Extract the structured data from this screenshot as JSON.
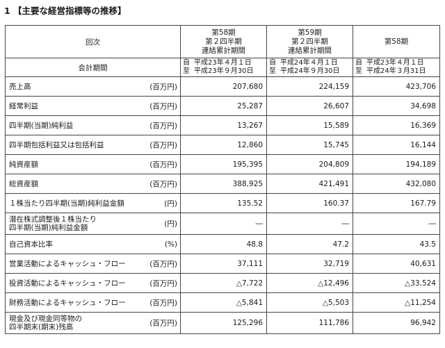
{
  "heading": "1 【主要な経営指標等の推移】",
  "header": {
    "row_label": "回次",
    "period_label": "会計期間",
    "columns": [
      {
        "title_lines": [
          "第58期",
          "第２四半期",
          "連結累計期間"
        ],
        "period_from_mark": "自",
        "period_from": "平成23年４月１日",
        "period_to_mark": "至",
        "period_to": "平成23年９月30日"
      },
      {
        "title_lines": [
          "第59期",
          "第２四半期",
          "連結累計期間"
        ],
        "period_from_mark": "自",
        "period_from": "平成24年４月１日",
        "period_to_mark": "至",
        "period_to": "平成24年９月30日"
      },
      {
        "title_lines": [
          "第58期"
        ],
        "period_from_mark": "自",
        "period_from": "平成23年４月１日",
        "period_to_mark": "至",
        "period_to": "平成24年３月31日"
      }
    ]
  },
  "rows": [
    {
      "label": "売上高",
      "unit": "(百万円)",
      "values": [
        "207,680",
        "224,159",
        "423,706"
      ]
    },
    {
      "label": "経常利益",
      "unit": "(百万円)",
      "values": [
        "25,287",
        "26,607",
        "34,698"
      ]
    },
    {
      "label": "四半期(当期)純利益",
      "unit": "(百万円)",
      "values": [
        "13,267",
        "15,589",
        "16,369"
      ]
    },
    {
      "label": "四半期包括利益又は包括利益",
      "unit": "(百万円)",
      "values": [
        "12,860",
        "15,745",
        "16,144"
      ]
    },
    {
      "label": "純資産額",
      "unit": "(百万円)",
      "values": [
        "195,395",
        "204,809",
        "194,189"
      ]
    },
    {
      "label": "総資産額",
      "unit": "(百万円)",
      "values": [
        "388,925",
        "421,491",
        "432,080"
      ]
    },
    {
      "label": "１株当たり四半期(当期)純利益金額",
      "unit": "(円)",
      "values": [
        "135.52",
        "160.37",
        "167.79"
      ]
    },
    {
      "label_lines": [
        "潜在株式調整後１株当たり",
        "四半期(当期)純利益金額"
      ],
      "unit": "(円)",
      "values": [
        "―",
        "―",
        "―"
      ]
    },
    {
      "label": "自己資本比率",
      "unit": "(%)",
      "values": [
        "48.8",
        "47.2",
        "43.5"
      ]
    },
    {
      "label": "営業活動によるキャッシュ・フロー",
      "unit": "(百万円)",
      "values": [
        "37,111",
        "32,719",
        "40,631"
      ]
    },
    {
      "label": "投資活動によるキャッシュ・フロー",
      "unit": "(百万円)",
      "values": [
        "△7,722",
        "△12,496",
        "△33,524"
      ]
    },
    {
      "label": "財務活動によるキャッシュ・フロー",
      "unit": "(百万円)",
      "values": [
        "△5,841",
        "△5,503",
        "△11,254"
      ]
    },
    {
      "label_lines": [
        "現金及び現金同等物の",
        "四半期末(期末)残高"
      ],
      "unit": "(百万円)",
      "values": [
        "125,296",
        "111,786",
        "96,942"
      ]
    }
  ]
}
